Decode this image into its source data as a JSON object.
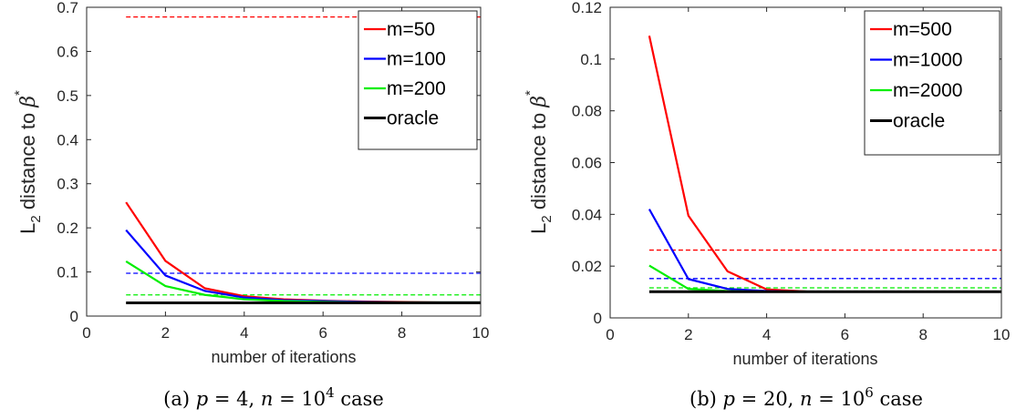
{
  "chart_data": [
    {
      "type": "line",
      "caption_label": "(a)",
      "caption_p": "p",
      "caption_p_value": "4,",
      "caption_n": "n",
      "caption_n_value": "10",
      "caption_n_exp": "4",
      "caption_tail": "case",
      "xlabel": "number of iterations",
      "ylabel_main": "L",
      "ylabel_sub": "2",
      "ylabel_rest": " distance to ",
      "ylabel_beta": "β",
      "ylabel_star": "*",
      "xlim": [
        0,
        10
      ],
      "ylim": [
        0,
        0.7
      ],
      "xticks": [
        "0",
        "2",
        "4",
        "6",
        "8",
        "10"
      ],
      "yticks": [
        "0",
        "0.1",
        "0.2",
        "0.3",
        "0.4",
        "0.5",
        "0.6",
        "0.7"
      ],
      "legend_position": "top-right",
      "x": [
        1,
        2,
        3,
        4,
        5,
        6,
        7,
        8,
        9,
        10
      ],
      "series": [
        {
          "name": "m=50",
          "color": "#ff0000",
          "values": [
            0.258,
            0.125,
            0.063,
            0.045,
            0.038,
            0.035,
            0.033,
            0.032,
            0.031,
            0.031
          ]
        },
        {
          "name": "m=100",
          "color": "#0000ff",
          "values": [
            0.195,
            0.092,
            0.057,
            0.042,
            0.036,
            0.034,
            0.032,
            0.031,
            0.031,
            0.031
          ]
        },
        {
          "name": "m=200",
          "color": "#00ee00",
          "values": [
            0.124,
            0.068,
            0.048,
            0.038,
            0.034,
            0.032,
            0.031,
            0.031,
            0.031,
            0.031
          ]
        },
        {
          "name": "oracle",
          "color": "#000000",
          "values": [
            0.03,
            0.03,
            0.03,
            0.03,
            0.03,
            0.03,
            0.03,
            0.03,
            0.03,
            0.03
          ]
        }
      ],
      "reference_lines": [
        {
          "color": "#ff0000",
          "y": 0.678
        },
        {
          "color": "#0000ff",
          "y": 0.097
        },
        {
          "color": "#00ee00",
          "y": 0.048
        }
      ]
    },
    {
      "type": "line",
      "caption_label": "(b)",
      "caption_p": "p",
      "caption_p_value": "20,",
      "caption_n": "n",
      "caption_n_value": "10",
      "caption_n_exp": "6",
      "caption_tail": "case",
      "xlabel": "number of iterations",
      "ylabel_main": "L",
      "ylabel_sub": "2",
      "ylabel_rest": " distance to ",
      "ylabel_beta": "β",
      "ylabel_star": "*",
      "xlim": [
        0,
        10
      ],
      "ylim": [
        0,
        0.12
      ],
      "xticks": [
        "0",
        "2",
        "4",
        "6",
        "8",
        "10"
      ],
      "yticks": [
        "0",
        "0.02",
        "0.04",
        "0.06",
        "0.08",
        "0.1",
        "0.12"
      ],
      "legend_position": "top-right",
      "x": [
        1,
        2,
        3,
        4,
        5,
        6,
        7,
        8,
        9,
        10
      ],
      "series": [
        {
          "name": "m=500",
          "color": "#ff0000",
          "values": [
            0.109,
            0.0395,
            0.018,
            0.011,
            0.0102,
            0.0101,
            0.0101,
            0.0101,
            0.0101,
            0.0101
          ]
        },
        {
          "name": "m=1000",
          "color": "#0000ff",
          "values": [
            0.042,
            0.015,
            0.0112,
            0.0104,
            0.0101,
            0.0101,
            0.0101,
            0.0101,
            0.0101,
            0.0101
          ]
        },
        {
          "name": "m=2000",
          "color": "#00ee00",
          "values": [
            0.0202,
            0.0112,
            0.0104,
            0.0101,
            0.0101,
            0.0101,
            0.0101,
            0.0101,
            0.0101,
            0.0101
          ]
        },
        {
          "name": "oracle",
          "color": "#000000",
          "values": [
            0.0101,
            0.0101,
            0.0101,
            0.0101,
            0.0101,
            0.0101,
            0.0101,
            0.0101,
            0.0101,
            0.0101
          ]
        }
      ],
      "reference_lines": [
        {
          "color": "#ff0000",
          "y": 0.0262
        },
        {
          "color": "#0000ff",
          "y": 0.0152
        },
        {
          "color": "#00ee00",
          "y": 0.0116
        }
      ]
    }
  ]
}
